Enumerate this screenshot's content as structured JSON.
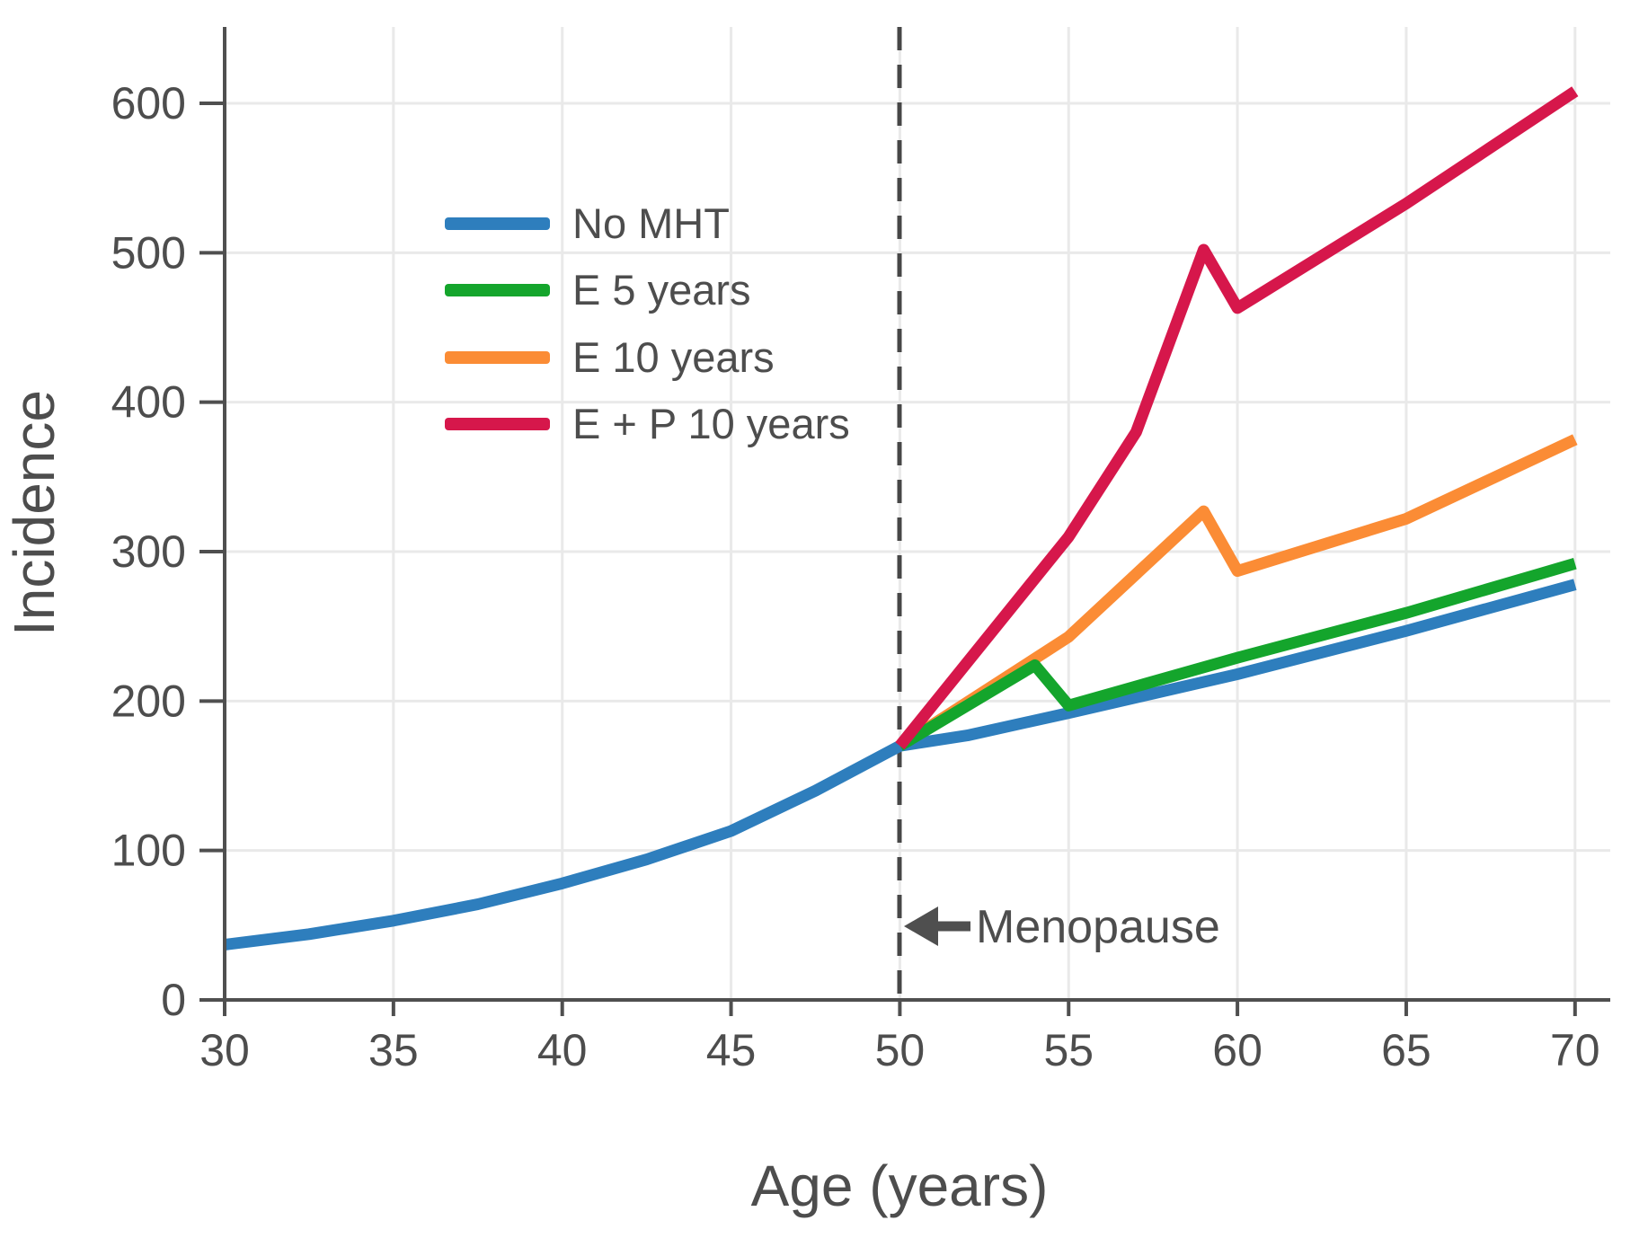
{
  "chart_data": {
    "type": "line",
    "title": "",
    "xlabel": "Age (years)",
    "ylabel": "Incidence",
    "x_ticks": [
      30,
      35,
      40,
      45,
      50,
      55,
      60,
      65,
      70
    ],
    "y_ticks": [
      0,
      100,
      200,
      300,
      400,
      500,
      600
    ],
    "xlim": [
      30,
      71
    ],
    "ylim": [
      0,
      651
    ],
    "grid": true,
    "legend_position": "upper-left-inside",
    "annotation": {
      "text": "Menopause",
      "arrow": "left-arrow-icon",
      "at_age": 50
    },
    "menopause_line": {
      "x": 50,
      "style": "dashed",
      "color": "#474747"
    },
    "series": [
      {
        "name": "No MHT",
        "color": "#2e7ebd",
        "points": [
          [
            30,
            37
          ],
          [
            32.5,
            44
          ],
          [
            35,
            53
          ],
          [
            37.5,
            64
          ],
          [
            40,
            78
          ],
          [
            42.5,
            94
          ],
          [
            45,
            113
          ],
          [
            47.5,
            140
          ],
          [
            50,
            170
          ],
          [
            52,
            177
          ],
          [
            55,
            192
          ],
          [
            60,
            218
          ],
          [
            65,
            247
          ],
          [
            70,
            278
          ]
        ]
      },
      {
        "name": "E 5 years",
        "color": "#14a52c",
        "points": [
          [
            50,
            170
          ],
          [
            54,
            224
          ],
          [
            55,
            197
          ],
          [
            60,
            229
          ],
          [
            65,
            259
          ],
          [
            70,
            292
          ]
        ]
      },
      {
        "name": "E 10 years",
        "color": "#fb8c35",
        "points": [
          [
            50,
            170
          ],
          [
            55,
            243
          ],
          [
            59,
            327
          ],
          [
            60,
            287
          ],
          [
            65,
            322
          ],
          [
            70,
            375
          ]
        ]
      },
      {
        "name": "E + P 10 years",
        "color": "#d6174b",
        "points": [
          [
            50,
            170
          ],
          [
            55,
            310
          ],
          [
            57,
            380
          ],
          [
            59,
            502
          ],
          [
            60,
            463
          ],
          [
            65,
            533
          ],
          [
            70,
            608
          ]
        ]
      }
    ],
    "draw_order": [
      0,
      2,
      1,
      3
    ],
    "colors": {
      "background": "#ffffff",
      "gridline": "#e9e9e9",
      "axis": "#4f4f4f",
      "text": "#4d4d4d",
      "dashed_line": "#474747"
    }
  }
}
